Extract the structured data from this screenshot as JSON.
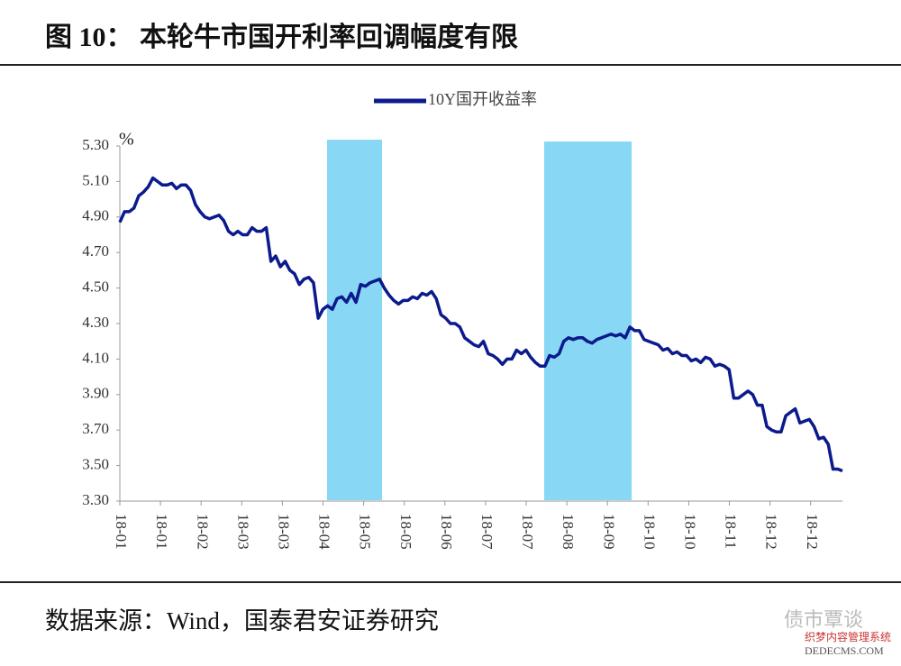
{
  "chart_data": {
    "type": "line",
    "title": "图 10：  本轮牛市国开利率回调幅度有限",
    "y_unit": "%",
    "source": "数据来源：Wind，国泰君安证券研究",
    "watermark": "债市覃谈",
    "watermark2": "织梦内容管理系统",
    "watermark3": "DEDECMS.COM",
    "x_labels": [
      "18-01",
      "18-01",
      "18-02",
      "18-03",
      "18-03",
      "18-04",
      "18-05",
      "18-05",
      "18-06",
      "18-07",
      "18-07",
      "18-08",
      "18-09",
      "18-10",
      "18-10",
      "18-11",
      "18-12",
      "18-12"
    ],
    "ylim": [
      3.3,
      5.3
    ],
    "yticks": [
      {
        "value": 3.3,
        "label": "3.30"
      },
      {
        "value": 3.5,
        "label": "3.50"
      },
      {
        "value": 3.7,
        "label": "3.70"
      },
      {
        "value": 3.9,
        "label": "3.90"
      },
      {
        "value": 4.1,
        "label": "4.10"
      },
      {
        "value": 4.3,
        "label": "4.30"
      },
      {
        "value": 4.5,
        "label": "4.50"
      },
      {
        "value": 4.7,
        "label": "4.70"
      },
      {
        "value": 4.9,
        "label": "4.90"
      },
      {
        "value": 5.1,
        "label": "5.10"
      },
      {
        "value": 5.3,
        "label": "5.30"
      }
    ],
    "legend": "top",
    "series": [
      {
        "name": "10Y国开收益率",
        "color": "#0b1a8c",
        "values": [
          4.87,
          4.93,
          4.93,
          4.95,
          5.02,
          5.04,
          5.07,
          5.12,
          5.1,
          5.08,
          5.08,
          5.09,
          5.06,
          5.08,
          5.08,
          5.05,
          4.97,
          4.93,
          4.9,
          4.89,
          4.9,
          4.91,
          4.88,
          4.82,
          4.8,
          4.82,
          4.8,
          4.8,
          4.84,
          4.82,
          4.82,
          4.84,
          4.65,
          4.68,
          4.62,
          4.65,
          4.6,
          4.58,
          4.52,
          4.55,
          4.56,
          4.53,
          4.33,
          4.38,
          4.4,
          4.38,
          4.44,
          4.45,
          4.42,
          4.47,
          4.42,
          4.52,
          4.51,
          4.53,
          4.54,
          4.55,
          4.5,
          4.46,
          4.43,
          4.41,
          4.43,
          4.43,
          4.45,
          4.44,
          4.47,
          4.46,
          4.48,
          4.44,
          4.35,
          4.33,
          4.3,
          4.3,
          4.28,
          4.22,
          4.2,
          4.18,
          4.17,
          4.2,
          4.13,
          4.12,
          4.1,
          4.07,
          4.1,
          4.1,
          4.15,
          4.13,
          4.15,
          4.11,
          4.08,
          4.06,
          4.06,
          4.12,
          4.11,
          4.13,
          4.2,
          4.22,
          4.21,
          4.22,
          4.22,
          4.2,
          4.19,
          4.21,
          4.22,
          4.23,
          4.24,
          4.23,
          4.24,
          4.22,
          4.28,
          4.26,
          4.26,
          4.21,
          4.2,
          4.19,
          4.18,
          4.15,
          4.16,
          4.13,
          4.14,
          4.12,
          4.12,
          4.09,
          4.1,
          4.08,
          4.11,
          4.1,
          4.06,
          4.07,
          4.06,
          4.04,
          3.88,
          3.88,
          3.9,
          3.92,
          3.9,
          3.84,
          3.84,
          3.72,
          3.7,
          3.69,
          3.69,
          3.78,
          3.8,
          3.82,
          3.74,
          3.75,
          3.76,
          3.72,
          3.65,
          3.66,
          3.62,
          3.48,
          3.48,
          3.47
        ]
      }
    ]
  }
}
